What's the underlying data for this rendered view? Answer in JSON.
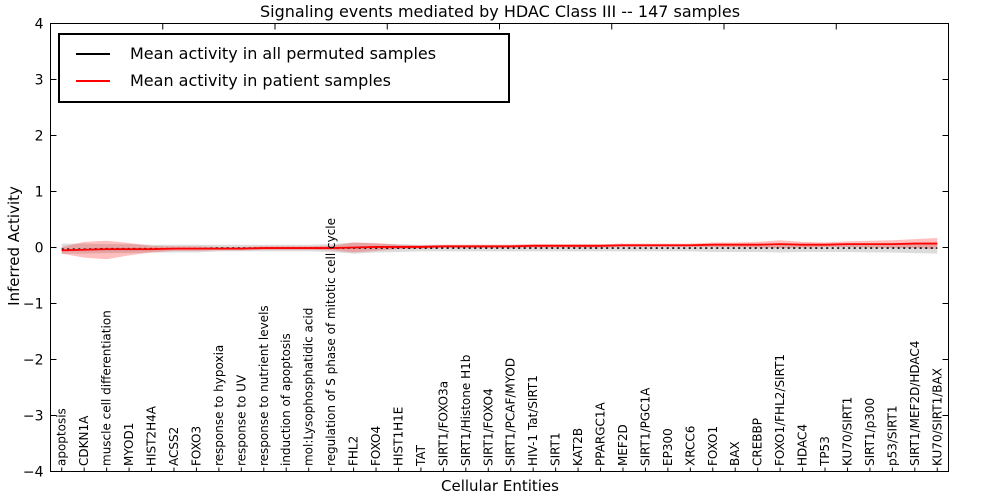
{
  "figure": {
    "background": "#ffffff",
    "frame_color": "#000000"
  },
  "chart_data": {
    "type": "line",
    "title": "Signaling events mediated by HDAC Class III -- 147 samples",
    "xlabel": "Cellular Entities",
    "ylabel": "Inferred Activity",
    "ylim": [
      -4,
      4
    ],
    "ytick_values": [
      4,
      3,
      2,
      1,
      0,
      -1,
      -2,
      -3,
      -4
    ],
    "ytick_labels": [
      "4",
      "3",
      "2",
      "1",
      "0",
      "−1",
      "−2",
      "−3",
      "−4"
    ],
    "xticks_major_every": 5,
    "grid": false,
    "legend_position": "upper left",
    "categories": [
      "apoptosis",
      "CDKN1A",
      "muscle cell differentiation",
      "MYOD1",
      "HIST2H4A",
      "ACSS2",
      "FOXO3",
      "response to hypoxia",
      "response to UV",
      "response to nutrient levels",
      "induction of apoptosis",
      "mol:Lysophosphatidic acid",
      "regulation of S phase of mitotic cell cycle",
      "FHL2",
      "FOXO4",
      "HIST1H1E",
      "TAT",
      "SIRT1/FOXO3a",
      "SIRT1/Histone H1b",
      "SIRT1/FOXO4",
      "SIRT1/PCAF/MYOD",
      "HIV-1 Tat/SIRT1",
      "SIRT1",
      "KAT2B",
      "PPARGC1A",
      "MEF2D",
      "SIRT1/PGC1A",
      "EP300",
      "XRCC6",
      "FOXO1",
      "BAX",
      "CREBBP",
      "FOXO1/FHL2/SIRT1",
      "HDAC4",
      "TP53",
      "KU70/SIRT1",
      "SIRT1/p300",
      "p53/SIRT1",
      "SIRT1/MEF2D/HDAC4",
      "KU70/SIRT1/BAX"
    ],
    "series": [
      {
        "name": "Mean activity in all permuted samples",
        "color": "#000000",
        "style": "dotted",
        "values": [
          -0.03,
          -0.03,
          -0.02,
          -0.02,
          -0.02,
          -0.02,
          -0.02,
          -0.01,
          -0.01,
          -0.01,
          -0.01,
          -0.01,
          -0.01,
          -0.01,
          -0.01,
          -0.01,
          -0.01,
          -0.01,
          -0.01,
          -0.01,
          -0.01,
          -0.01,
          -0.01,
          -0.01,
          -0.01,
          -0.01,
          -0.01,
          -0.01,
          -0.01,
          -0.01,
          -0.01,
          -0.01,
          -0.01,
          -0.01,
          -0.01,
          -0.01,
          -0.01,
          -0.01,
          -0.01,
          -0.01
        ]
      },
      {
        "name": "Mean activity in patient samples",
        "color": "#ff0000",
        "style": "solid",
        "values": [
          -0.05,
          -0.04,
          -0.03,
          -0.03,
          -0.03,
          -0.02,
          -0.02,
          -0.02,
          -0.02,
          -0.01,
          -0.01,
          -0.01,
          -0.01,
          0.0,
          0.01,
          0.01,
          0.01,
          0.02,
          0.02,
          0.02,
          0.02,
          0.03,
          0.03,
          0.03,
          0.03,
          0.04,
          0.04,
          0.04,
          0.04,
          0.05,
          0.05,
          0.05,
          0.06,
          0.05,
          0.05,
          0.06,
          0.06,
          0.06,
          0.07,
          0.07
        ]
      }
    ],
    "bands": [
      {
        "name": "permuted-samples-std-band",
        "color": "rgba(128,128,128,0.28)",
        "upper": [
          0.07,
          0.07,
          0.06,
          0.06,
          0.05,
          0.05,
          0.05,
          0.05,
          0.05,
          0.05,
          0.05,
          0.05,
          0.06,
          0.09,
          0.07,
          0.06,
          0.05,
          0.05,
          0.05,
          0.05,
          0.05,
          0.05,
          0.05,
          0.05,
          0.05,
          0.05,
          0.05,
          0.05,
          0.05,
          0.06,
          0.06,
          0.06,
          0.07,
          0.06,
          0.06,
          0.06,
          0.07,
          0.07,
          0.08,
          0.09
        ],
        "lower": [
          -0.11,
          -0.11,
          -0.1,
          -0.1,
          -0.09,
          -0.09,
          -0.09,
          -0.07,
          -0.07,
          -0.07,
          -0.07,
          -0.07,
          -0.08,
          -0.11,
          -0.09,
          -0.08,
          -0.07,
          -0.07,
          -0.07,
          -0.07,
          -0.07,
          -0.07,
          -0.07,
          -0.07,
          -0.07,
          -0.07,
          -0.07,
          -0.07,
          -0.07,
          -0.08,
          -0.08,
          -0.08,
          -0.09,
          -0.08,
          -0.08,
          -0.08,
          -0.09,
          -0.09,
          -0.1,
          -0.11
        ]
      },
      {
        "name": "patient-samples-std-band",
        "color": "rgba(255,0,0,0.25)",
        "upper": [
          0.01,
          0.1,
          0.12,
          0.08,
          0.03,
          0.02,
          0.02,
          0.01,
          0.01,
          0.02,
          0.02,
          0.02,
          0.03,
          0.09,
          0.08,
          0.05,
          0.04,
          0.05,
          0.05,
          0.05,
          0.05,
          0.06,
          0.06,
          0.06,
          0.06,
          0.07,
          0.07,
          0.07,
          0.07,
          0.09,
          0.09,
          0.1,
          0.13,
          0.1,
          0.09,
          0.11,
          0.12,
          0.13,
          0.15,
          0.17
        ],
        "lower": [
          -0.11,
          -0.18,
          -0.21,
          -0.14,
          -0.09,
          -0.06,
          -0.06,
          -0.05,
          -0.05,
          -0.04,
          -0.04,
          -0.04,
          -0.05,
          -0.09,
          -0.06,
          -0.03,
          -0.02,
          -0.01,
          -0.01,
          -0.01,
          -0.01,
          0.0,
          0.0,
          0.0,
          0.0,
          0.01,
          0.01,
          0.01,
          0.01,
          0.01,
          0.01,
          0.0,
          -0.01,
          0.0,
          0.01,
          0.01,
          0.0,
          -0.01,
          -0.01,
          -0.03
        ]
      }
    ]
  }
}
